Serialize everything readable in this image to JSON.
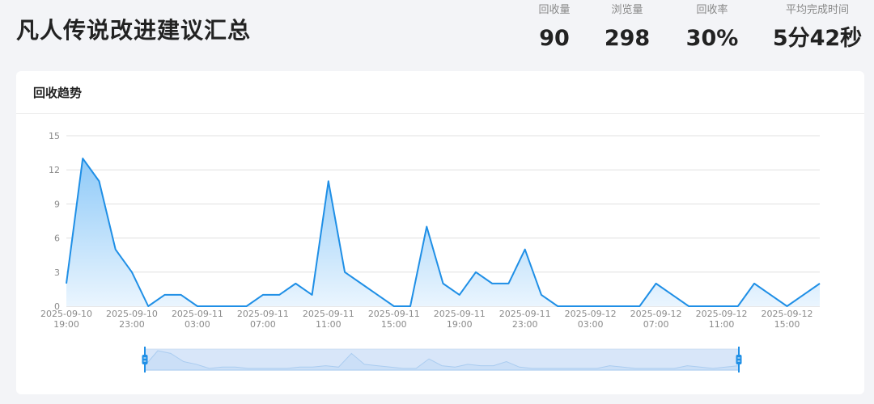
{
  "header": {
    "title": "凡人传说改进建议汇总",
    "stats": [
      {
        "label": "回收量",
        "value": "90"
      },
      {
        "label": "浏览量",
        "value": "298"
      },
      {
        "label": "回收率",
        "value": "30%"
      },
      {
        "label": "平均完成时间",
        "value": "5分42秒"
      }
    ]
  },
  "card": {
    "title": "回收趋势"
  },
  "colors": {
    "line": "#1f8fe6",
    "area_top": "#8fcaf8",
    "area_bottom": "#eaf5fe",
    "grid": "#e0e0e0"
  },
  "chart_data": {
    "type": "area",
    "title": "",
    "xlabel": "",
    "ylabel": "",
    "ylim": [
      0,
      15
    ],
    "yticks": [
      "0",
      "3",
      "6",
      "9",
      "12",
      "15"
    ],
    "x_tick_labels": [
      [
        "2025-09-10",
        "19:00"
      ],
      [
        "2025-09-10",
        "23:00"
      ],
      [
        "2025-09-11",
        "03:00"
      ],
      [
        "2025-09-11",
        "07:00"
      ],
      [
        "2025-09-11",
        "11:00"
      ],
      [
        "2025-09-11",
        "15:00"
      ],
      [
        "2025-09-11",
        "19:00"
      ],
      [
        "2025-09-11",
        "23:00"
      ],
      [
        "2025-09-12",
        "03:00"
      ],
      [
        "2025-09-12",
        "07:00"
      ],
      [
        "2025-09-12",
        "11:00"
      ],
      [
        "2025-09-12",
        "15:00"
      ]
    ],
    "x_start": "2025-09-10 19:00",
    "x_interval_hours": 1,
    "values": [
      2,
      13,
      11,
      5,
      3,
      0,
      1,
      1,
      0,
      0,
      0,
      0,
      1,
      1,
      2,
      1,
      11,
      3,
      2,
      1,
      0,
      0,
      7,
      2,
      1,
      3,
      2,
      2,
      5,
      1,
      0,
      0,
      0,
      0,
      0,
      0,
      2,
      1,
      0,
      0,
      0,
      0,
      2,
      1,
      0,
      1,
      2
    ],
    "grid": true,
    "data_zoom": {
      "start_percent": 0,
      "end_percent": 100
    }
  }
}
